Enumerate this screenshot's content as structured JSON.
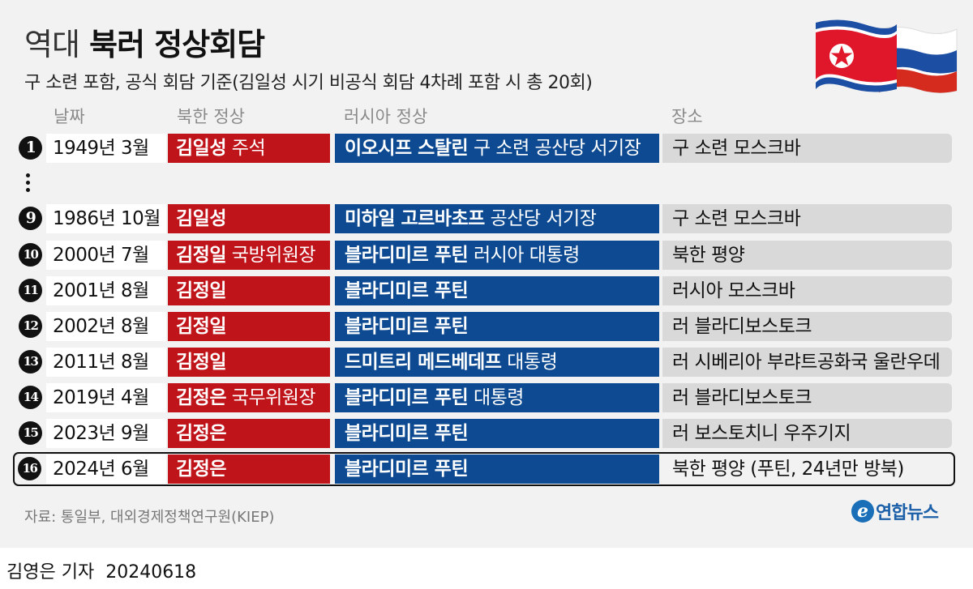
{
  "header": {
    "title_light": "역대",
    "title_bold": "북러 정상회담",
    "subtitle": "구 소련 포함, 공식 회담 기준(김일성 시기 비공식 회담 4차례 포함 시 총 20회)"
  },
  "columns": {
    "date": "날짜",
    "nk": "북한 정상",
    "ru": "러시아 정상",
    "place": "장소"
  },
  "rows": [
    {
      "num": "1",
      "date": "1949년 3월",
      "nk_name": "김일성",
      "nk_title": " 주석",
      "ru_name": "이오시프 스탈린",
      "ru_title": " 구 소련 공산당 서기장",
      "place": "구 소련 모스크바"
    },
    {
      "num": "9",
      "date": "1986년 10월",
      "nk_name": "김일성",
      "nk_title": "",
      "ru_name": "미하일 고르바초프",
      "ru_title": " 공산당 서기장",
      "place": "구 소련 모스크바"
    },
    {
      "num": "10",
      "date": "2000년 7월",
      "nk_name": "김정일",
      "nk_title": " 국방위원장",
      "ru_name": "블라디미르 푸틴",
      "ru_title": " 러시아 대통령",
      "place": "북한 평양"
    },
    {
      "num": "11",
      "date": "2001년 8월",
      "nk_name": "김정일",
      "nk_title": "",
      "ru_name": "블라디미르 푸틴",
      "ru_title": "",
      "place": "러시아 모스크바"
    },
    {
      "num": "12",
      "date": "2002년 8월",
      "nk_name": "김정일",
      "nk_title": "",
      "ru_name": "블라디미르 푸틴",
      "ru_title": "",
      "place": "러 블라디보스토크"
    },
    {
      "num": "13",
      "date": "2011년 8월",
      "nk_name": "김정일",
      "nk_title": "",
      "ru_name": "드미트리 메드베데프",
      "ru_title": " 대통령",
      "place": "러 시베리아 부랴트공화국 울란우데"
    },
    {
      "num": "14",
      "date": "2019년 4월",
      "nk_name": "김정은",
      "nk_title": " 국무위원장",
      "ru_name": "블라디미르 푸틴",
      "ru_title": " 대통령",
      "place": "러 블라디보스토크"
    },
    {
      "num": "15",
      "date": "2023년 9월",
      "nk_name": "김정은",
      "nk_title": "",
      "ru_name": "블라디미르 푸틴",
      "ru_title": "",
      "place": "러 보스토치니 우주기지"
    },
    {
      "num": "16",
      "date": "2024년 6월",
      "nk_name": "김정은",
      "nk_title": "",
      "ru_name": "블라디미르 푸틴",
      "ru_title": "",
      "place": "북한 평양 (푸틴, 24년만 방북)"
    }
  ],
  "footer": {
    "source": "자료: 통일부, 대외경제정책연구원(KIEP)",
    "logo_mark": "e",
    "logo_text": "연합뉴스",
    "reporter": "김영은 기자",
    "date_stamp": "20240618"
  },
  "colors": {
    "nk_bar": "#c0141b",
    "ru_bar": "#0d4a91",
    "place_bar": "#d9d9d9",
    "background": "#f2f2f2"
  },
  "icons": {
    "flags": "north-korea-russia-flags-icon",
    "ellipsis": "vertical-ellipsis-icon",
    "logo": "yonhap-logo-icon"
  }
}
